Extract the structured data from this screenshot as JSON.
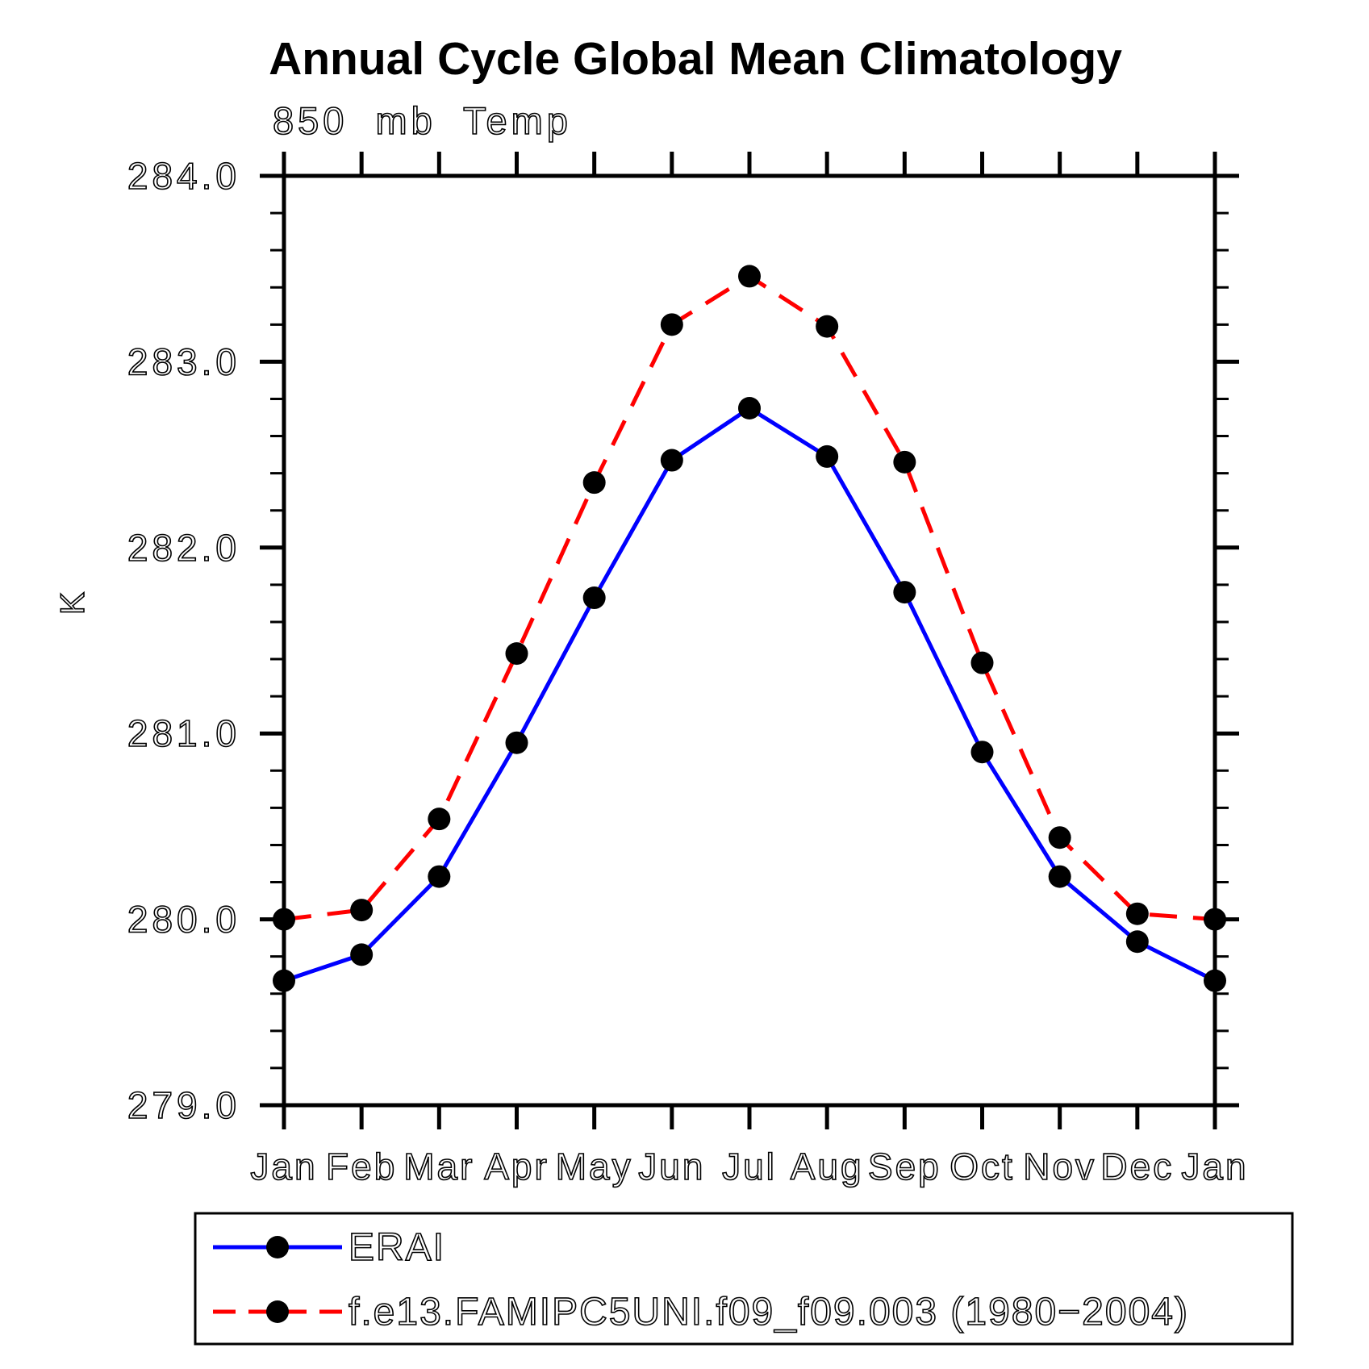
{
  "chart_data": {
    "type": "line",
    "title": "Annual Cycle Global Mean Climatology",
    "subtitle": "850 mb Temp",
    "ylabel": "K",
    "units": "K",
    "x_tick_labels": [
      "Jan",
      "Feb",
      "Mar",
      "Apr",
      "May",
      "Jun",
      "Jul",
      "Aug",
      "Sep",
      "Oct",
      "Nov",
      "Dec",
      "Jan"
    ],
    "ylim": [
      279.0,
      284.0
    ],
    "y_major_tick_labels": [
      "279.0",
      "280.0",
      "281.0",
      "282.0",
      "283.0",
      "284.0"
    ],
    "y_major_step": 1.0,
    "y_minor_step": 0.2,
    "grid": "off",
    "legend_position": "bottom-left",
    "background_color": "#ffffff",
    "axis_color": "#000000",
    "marker_color": "#000000",
    "series": [
      {
        "name": "ERAI",
        "line_style": "solid",
        "color": "#0000ff",
        "marker": "filled-circle",
        "values": [
          279.67,
          279.81,
          280.23,
          280.95,
          281.73,
          282.47,
          282.75,
          282.49,
          281.76,
          280.9,
          280.23,
          279.88,
          279.67
        ]
      },
      {
        "name": "f.e13.FAMIPC5UNI.f09_f09.003 (1980−2004)",
        "line_style": "dashed",
        "color": "#ff0000",
        "marker": "filled-circle",
        "values": [
          280.0,
          280.05,
          280.54,
          281.43,
          282.35,
          283.2,
          283.46,
          283.19,
          282.46,
          281.38,
          280.44,
          280.03,
          280.0
        ]
      }
    ]
  }
}
